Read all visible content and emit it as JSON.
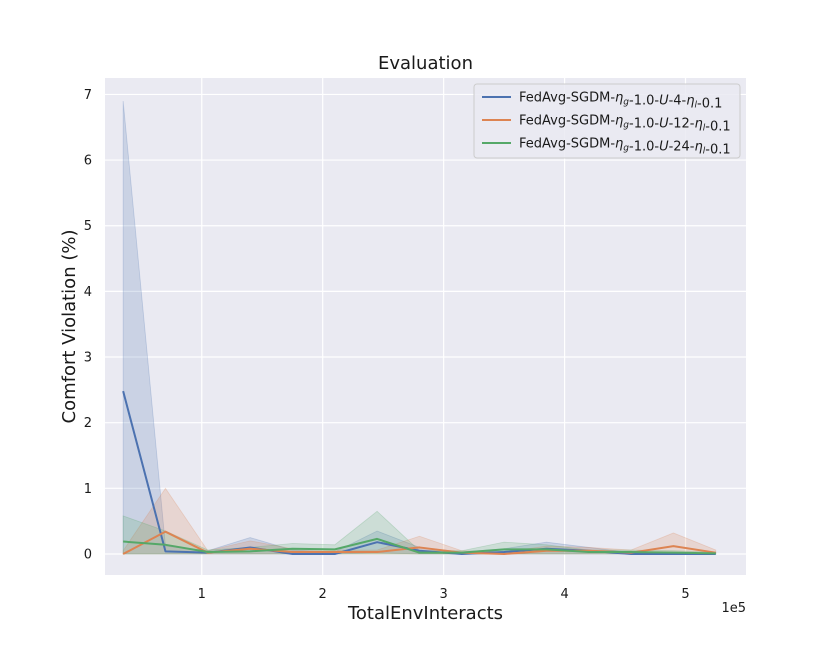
{
  "chart_data": {
    "type": "line",
    "title": "Evaluation",
    "xlabel": "TotalEnvInteracts",
    "ylabel": "Comfort Violation (%)",
    "x_offset_label": "1e5",
    "x_scale_factor": 100000,
    "xlim": [
      0.2,
      5.5
    ],
    "ylim": [
      -0.32,
      7.25
    ],
    "xticks": [
      1,
      2,
      3,
      4,
      5
    ],
    "yticks": [
      0,
      1,
      2,
      3,
      4,
      5,
      6,
      7
    ],
    "grid": true,
    "legend_position": "top-right",
    "x": [
      0.35,
      0.7,
      1.05,
      1.4,
      1.75,
      2.1,
      2.45,
      2.8,
      3.15,
      3.5,
      3.85,
      4.2,
      4.55,
      4.9,
      5.25
    ],
    "series": [
      {
        "name_parts": [
          {
            "t": "FedAvg-SGDM-",
            "s": "normal"
          },
          {
            "t": "η",
            "s": "italic"
          },
          {
            "t": "g",
            "s": "italic-sub"
          },
          {
            "t": "-1.0-",
            "s": "normal"
          },
          {
            "t": "U",
            "s": "italic"
          },
          {
            "t": "-4-",
            "s": "normal"
          },
          {
            "t": "η",
            "s": "italic"
          },
          {
            "t": "l",
            "s": "italic-sub"
          },
          {
            "t": "-0.1",
            "s": "normal"
          }
        ],
        "color": "#4c72b0",
        "values": [
          2.48,
          0.04,
          0.02,
          0.1,
          0.0,
          0.0,
          0.18,
          0.05,
          0.0,
          0.03,
          0.08,
          0.05,
          0.0,
          0.0,
          0.0
        ],
        "upper": [
          6.9,
          0.12,
          0.05,
          0.25,
          0.06,
          0.03,
          0.35,
          0.1,
          0.03,
          0.08,
          0.18,
          0.1,
          0.02,
          0.02,
          0.02
        ],
        "lower": [
          0.0,
          0.0,
          0.0,
          0.0,
          0.0,
          0.0,
          0.02,
          0.0,
          0.0,
          0.0,
          0.0,
          0.0,
          0.0,
          0.0,
          0.0
        ]
      },
      {
        "name_parts": [
          {
            "t": "FedAvg-SGDM-",
            "s": "normal"
          },
          {
            "t": "η",
            "s": "italic"
          },
          {
            "t": "g",
            "s": "italic-sub"
          },
          {
            "t": "-1.0-",
            "s": "normal"
          },
          {
            "t": "U",
            "s": "italic"
          },
          {
            "t": "-12-",
            "s": "normal"
          },
          {
            "t": "η",
            "s": "italic"
          },
          {
            "t": "l",
            "s": "italic-sub"
          },
          {
            "t": "-0.1",
            "s": "normal"
          }
        ],
        "color": "#dd8452",
        "values": [
          0.0,
          0.34,
          0.02,
          0.08,
          0.03,
          0.03,
          0.03,
          0.1,
          0.02,
          0.0,
          0.05,
          0.05,
          0.02,
          0.12,
          0.02
        ],
        "upper": [
          0.05,
          1.0,
          0.05,
          0.2,
          0.08,
          0.06,
          0.06,
          0.27,
          0.05,
          0.03,
          0.12,
          0.1,
          0.06,
          0.32,
          0.06
        ],
        "lower": [
          0.0,
          0.0,
          0.0,
          0.0,
          0.0,
          0.0,
          0.0,
          0.0,
          0.0,
          0.0,
          0.0,
          0.0,
          0.0,
          0.0,
          0.0
        ]
      },
      {
        "name_parts": [
          {
            "t": "FedAvg-SGDM-",
            "s": "normal"
          },
          {
            "t": "η",
            "s": "italic"
          },
          {
            "t": "g",
            "s": "italic-sub"
          },
          {
            "t": "-1.0-",
            "s": "normal"
          },
          {
            "t": "U",
            "s": "italic"
          },
          {
            "t": "-24-",
            "s": "normal"
          },
          {
            "t": "η",
            "s": "italic"
          },
          {
            "t": "l",
            "s": "italic-sub"
          },
          {
            "t": "-0.1",
            "s": "normal"
          }
        ],
        "color": "#55a868",
        "values": [
          0.19,
          0.14,
          0.03,
          0.04,
          0.08,
          0.07,
          0.23,
          0.02,
          0.02,
          0.07,
          0.07,
          0.03,
          0.03,
          0.02,
          0.01
        ],
        "upper": [
          0.58,
          0.35,
          0.06,
          0.1,
          0.16,
          0.14,
          0.65,
          0.05,
          0.05,
          0.18,
          0.14,
          0.06,
          0.06,
          0.05,
          0.03
        ],
        "lower": [
          0.0,
          0.0,
          0.0,
          0.0,
          0.0,
          0.0,
          0.0,
          0.0,
          0.0,
          0.0,
          0.0,
          0.0,
          0.0,
          0.0,
          0.0
        ]
      }
    ]
  }
}
